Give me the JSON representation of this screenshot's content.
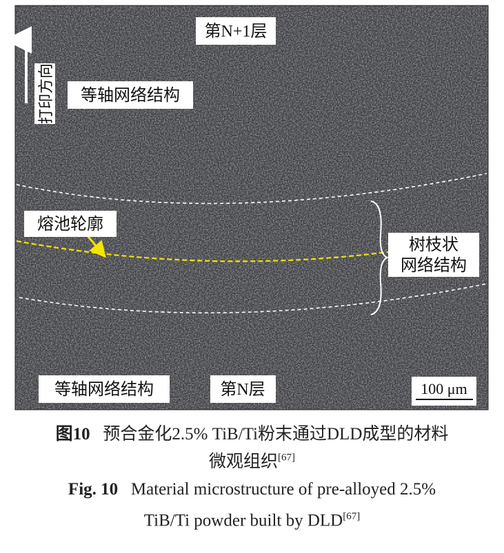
{
  "figure": {
    "labels": {
      "layer_top": "第N+1层",
      "direction": "打印方向",
      "equiaxed_top": "等轴网络结构",
      "pool_contour": "熔池轮廓",
      "dendritic_1": "树枝状",
      "dendritic_2": "网络结构",
      "equiaxed_bottom": "等轴网络结构",
      "layer_bottom": "第N层",
      "scale": "100 μm"
    },
    "caption_cn": {
      "number": "图10",
      "line1": "预合金化2.5% TiB/Ti粉末通过DLD成型的材料",
      "line2": "微观组织",
      "ref": "[67]"
    },
    "caption_en": {
      "number": "Fig. 10",
      "line1": "Material microstructure of pre-alloyed 2.5%",
      "line2": "TiB/Ti powder built by DLD",
      "ref": "[67]"
    }
  }
}
